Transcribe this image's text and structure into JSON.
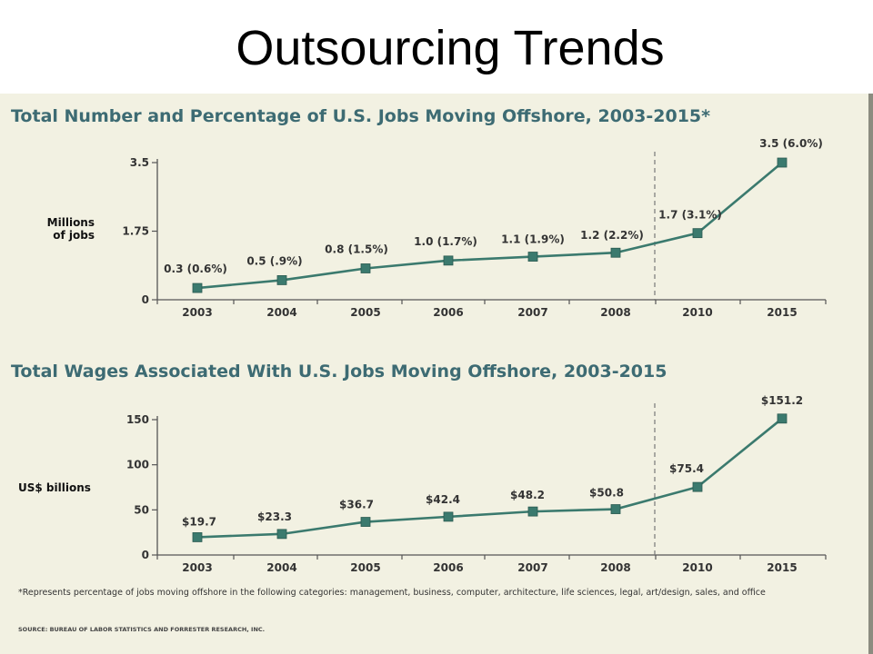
{
  "slide": {
    "title": "Outsourcing Trends",
    "footnote": "*Represents percentage of jobs moving offshore in the following categories: management, business, computer, architecture, life sciences, legal, art/design, sales, and office",
    "source": "SOURCE: BUREAU OF LABOR STATISTICS AND FORRESTER RESEARCH, INC."
  },
  "colors": {
    "panel": "#f2f1e2",
    "series": "#3b7a6e",
    "title": "#3d6b73"
  },
  "chart_data": [
    {
      "type": "line",
      "title": "Total Number and Percentage of U.S. Jobs Moving Offshore, 2003-2015*",
      "ylabel": "Millions\nof jobs",
      "categories": [
        "2003",
        "2004",
        "2005",
        "2006",
        "2007",
        "2008",
        "2010",
        "2015"
      ],
      "values": [
        0.3,
        0.5,
        0.8,
        1.0,
        1.1,
        1.2,
        1.7,
        3.5
      ],
      "labels": [
        "0.3 (0.6%)",
        "0.5 (.9%)",
        "0.8 (1.5%)",
        "1.0 (1.7%)",
        "1.1 (1.9%)",
        "1.2 (2.2%)",
        "1.7 (3.1%)",
        "3.5 (6.0%)"
      ],
      "yticks": [
        "0",
        "1.75",
        "3.5"
      ],
      "ylim": [
        0,
        3.5
      ],
      "divider_after": "2008",
      "grid": false
    },
    {
      "type": "line",
      "title": "Total Wages Associated With U.S. Jobs Moving Offshore, 2003-2015",
      "ylabel": "US$ billions",
      "categories": [
        "2003",
        "2004",
        "2005",
        "2006",
        "2007",
        "2008",
        "2010",
        "2015"
      ],
      "values": [
        19.7,
        23.3,
        36.7,
        42.4,
        48.2,
        50.8,
        75.4,
        151.2
      ],
      "labels": [
        "$19.7",
        "$23.3",
        "$36.7",
        "$42.4",
        "$48.2",
        "$50.8",
        "$75.4",
        "$151.2"
      ],
      "yticks": [
        "0",
        "50",
        "100",
        "150"
      ],
      "ylim": [
        0,
        150
      ],
      "divider_after": "2008",
      "grid": false
    }
  ]
}
